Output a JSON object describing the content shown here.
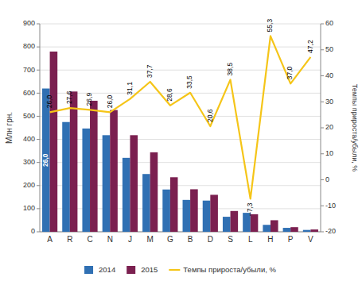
{
  "chart_data": {
    "type": "bar",
    "categories": [
      "A",
      "R",
      "C",
      "N",
      "J",
      "M",
      "G",
      "B",
      "D",
      "S",
      "L",
      "H",
      "P",
      "V"
    ],
    "series": [
      {
        "name": "2014",
        "color": "#3070B3",
        "values": [
          620,
          475,
          447,
          418,
          320,
          250,
          183,
          138,
          135,
          65,
          82,
          30,
          17,
          8
        ]
      },
      {
        "name": "2015",
        "color": "#7B2050",
        "values": [
          780,
          607,
          567,
          527,
          418,
          344,
          236,
          184,
          160,
          90,
          76,
          50,
          20,
          10
        ]
      },
      {
        "name": "Темпы прироста/убыли, %",
        "color": "#F5C518",
        "type": "line",
        "axis": "y2",
        "data_labels": true,
        "values": [
          26.0,
          27.6,
          26.9,
          26.0,
          31.1,
          37.7,
          28.6,
          33.5,
          20.6,
          38.5,
          -7.3,
          55.3,
          37.0,
          47.2
        ],
        "value_labels": [
          "26,0",
          "27,6",
          "26,9",
          "26,0",
          "31,1",
          "37,7",
          "28,6",
          "33,5",
          "20,6",
          "38,5",
          "–7,3",
          "55,3",
          "37,0",
          "47,2"
        ]
      }
    ],
    "ylabel": "Млн грн.",
    "y2label": "Темпы прироста/убыли, %",
    "ylim": [
      0,
      900
    ],
    "yticks": [
      0,
      100,
      200,
      300,
      400,
      500,
      600,
      700,
      800,
      900
    ],
    "y2lim": [
      -20,
      60
    ],
    "y2ticks": [
      -20,
      -10,
      0,
      10,
      20,
      30,
      40,
      50,
      60
    ],
    "annotations": [
      {
        "text": "26,0"
      }
    ],
    "grid": true,
    "legend": "bottom"
  }
}
